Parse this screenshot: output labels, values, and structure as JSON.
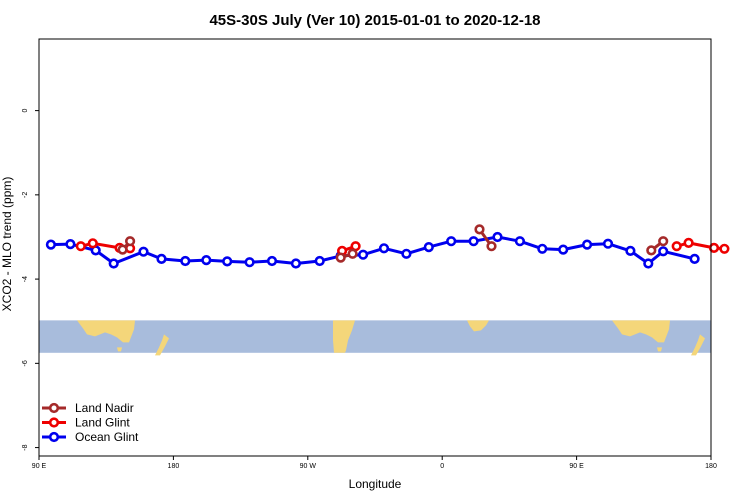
{
  "chart_data": {
    "type": "line",
    "title": "45S-30S July (Ver 10)   2015-01-01 to 2020-12-18",
    "xlabel": "Longitude",
    "ylabel": "XCO2 - MLO trend (ppm)",
    "xlim": [
      90,
      540
    ],
    "ylim": [
      -8.2,
      1.7
    ],
    "x_ticks": [
      {
        "value": 90,
        "label": "90 E"
      },
      {
        "value": 180,
        "label": "180"
      },
      {
        "value": 270,
        "label": "90 W"
      },
      {
        "value": 360,
        "label": "0"
      },
      {
        "value": 450,
        "label": "90 E"
      },
      {
        "value": 540,
        "label": "180"
      }
    ],
    "y_ticks": [
      {
        "value": 0,
        "label": "0"
      },
      {
        "value": -2,
        "label": "-2"
      },
      {
        "value": -4,
        "label": "-4"
      },
      {
        "value": -6,
        "label": "-6"
      },
      {
        "value": -8,
        "label": "-8"
      }
    ],
    "grid": false,
    "legend_position": "bottom-left",
    "map_strip": {
      "y_top": -4.98,
      "y_bottom": -5.75,
      "ocean_color": "#a8bcdc",
      "land_color": "#f4d67a"
    },
    "series": [
      {
        "name": "Ocean Glint",
        "color": "#0000ee",
        "points": [
          [
            98,
            -3.18
          ],
          [
            111,
            -3.17
          ],
          [
            128,
            -3.32
          ],
          [
            140,
            -3.63
          ],
          [
            160,
            -3.35
          ],
          [
            172,
            -3.52
          ],
          [
            188,
            -3.57
          ],
          [
            202,
            -3.55
          ],
          [
            216,
            -3.58
          ],
          [
            231,
            -3.6
          ],
          [
            246,
            -3.57
          ],
          [
            262,
            -3.63
          ],
          [
            278,
            -3.57
          ],
          [
            292,
            -3.45
          ],
          [
            307,
            -3.42
          ],
          [
            321,
            -3.27
          ],
          [
            336,
            -3.4
          ],
          [
            351,
            -3.24
          ],
          [
            366,
            -3.1
          ],
          [
            381,
            -3.1
          ],
          [
            397,
            -3.0
          ],
          [
            412,
            -3.1
          ],
          [
            427,
            -3.28
          ],
          [
            441,
            -3.3
          ],
          [
            457,
            -3.18
          ],
          [
            471,
            -3.16
          ],
          [
            486,
            -3.33
          ],
          [
            498,
            -3.63
          ],
          [
            508,
            -3.34
          ],
          [
            529,
            -3.52
          ]
        ]
      },
      {
        "name": "Land Glint",
        "color": "#ee0000",
        "segments": [
          [
            [
              118,
              -3.22
            ],
            [
              126,
              -3.15
            ],
            [
              144,
              -3.26
            ],
            [
              151,
              -3.27
            ]
          ],
          [
            [
              293,
              -3.33
            ],
            [
              302,
              -3.22
            ]
          ],
          [
            [
              517,
              -3.22
            ],
            [
              525,
              -3.14
            ],
            [
              542,
              -3.26
            ],
            [
              549,
              -3.28
            ]
          ]
        ]
      },
      {
        "name": "Land Nadir",
        "color": "#a52a2a",
        "segments": [
          [
            [
              146,
              -3.3
            ],
            [
              151,
              -3.1
            ]
          ],
          [
            [
              292,
              -3.49
            ],
            [
              300,
              -3.4
            ]
          ],
          [
            [
              385,
              -2.82
            ],
            [
              393,
              -3.22
            ]
          ],
          [
            [
              500,
              -3.32
            ],
            [
              508,
              -3.1
            ]
          ]
        ]
      }
    ]
  }
}
